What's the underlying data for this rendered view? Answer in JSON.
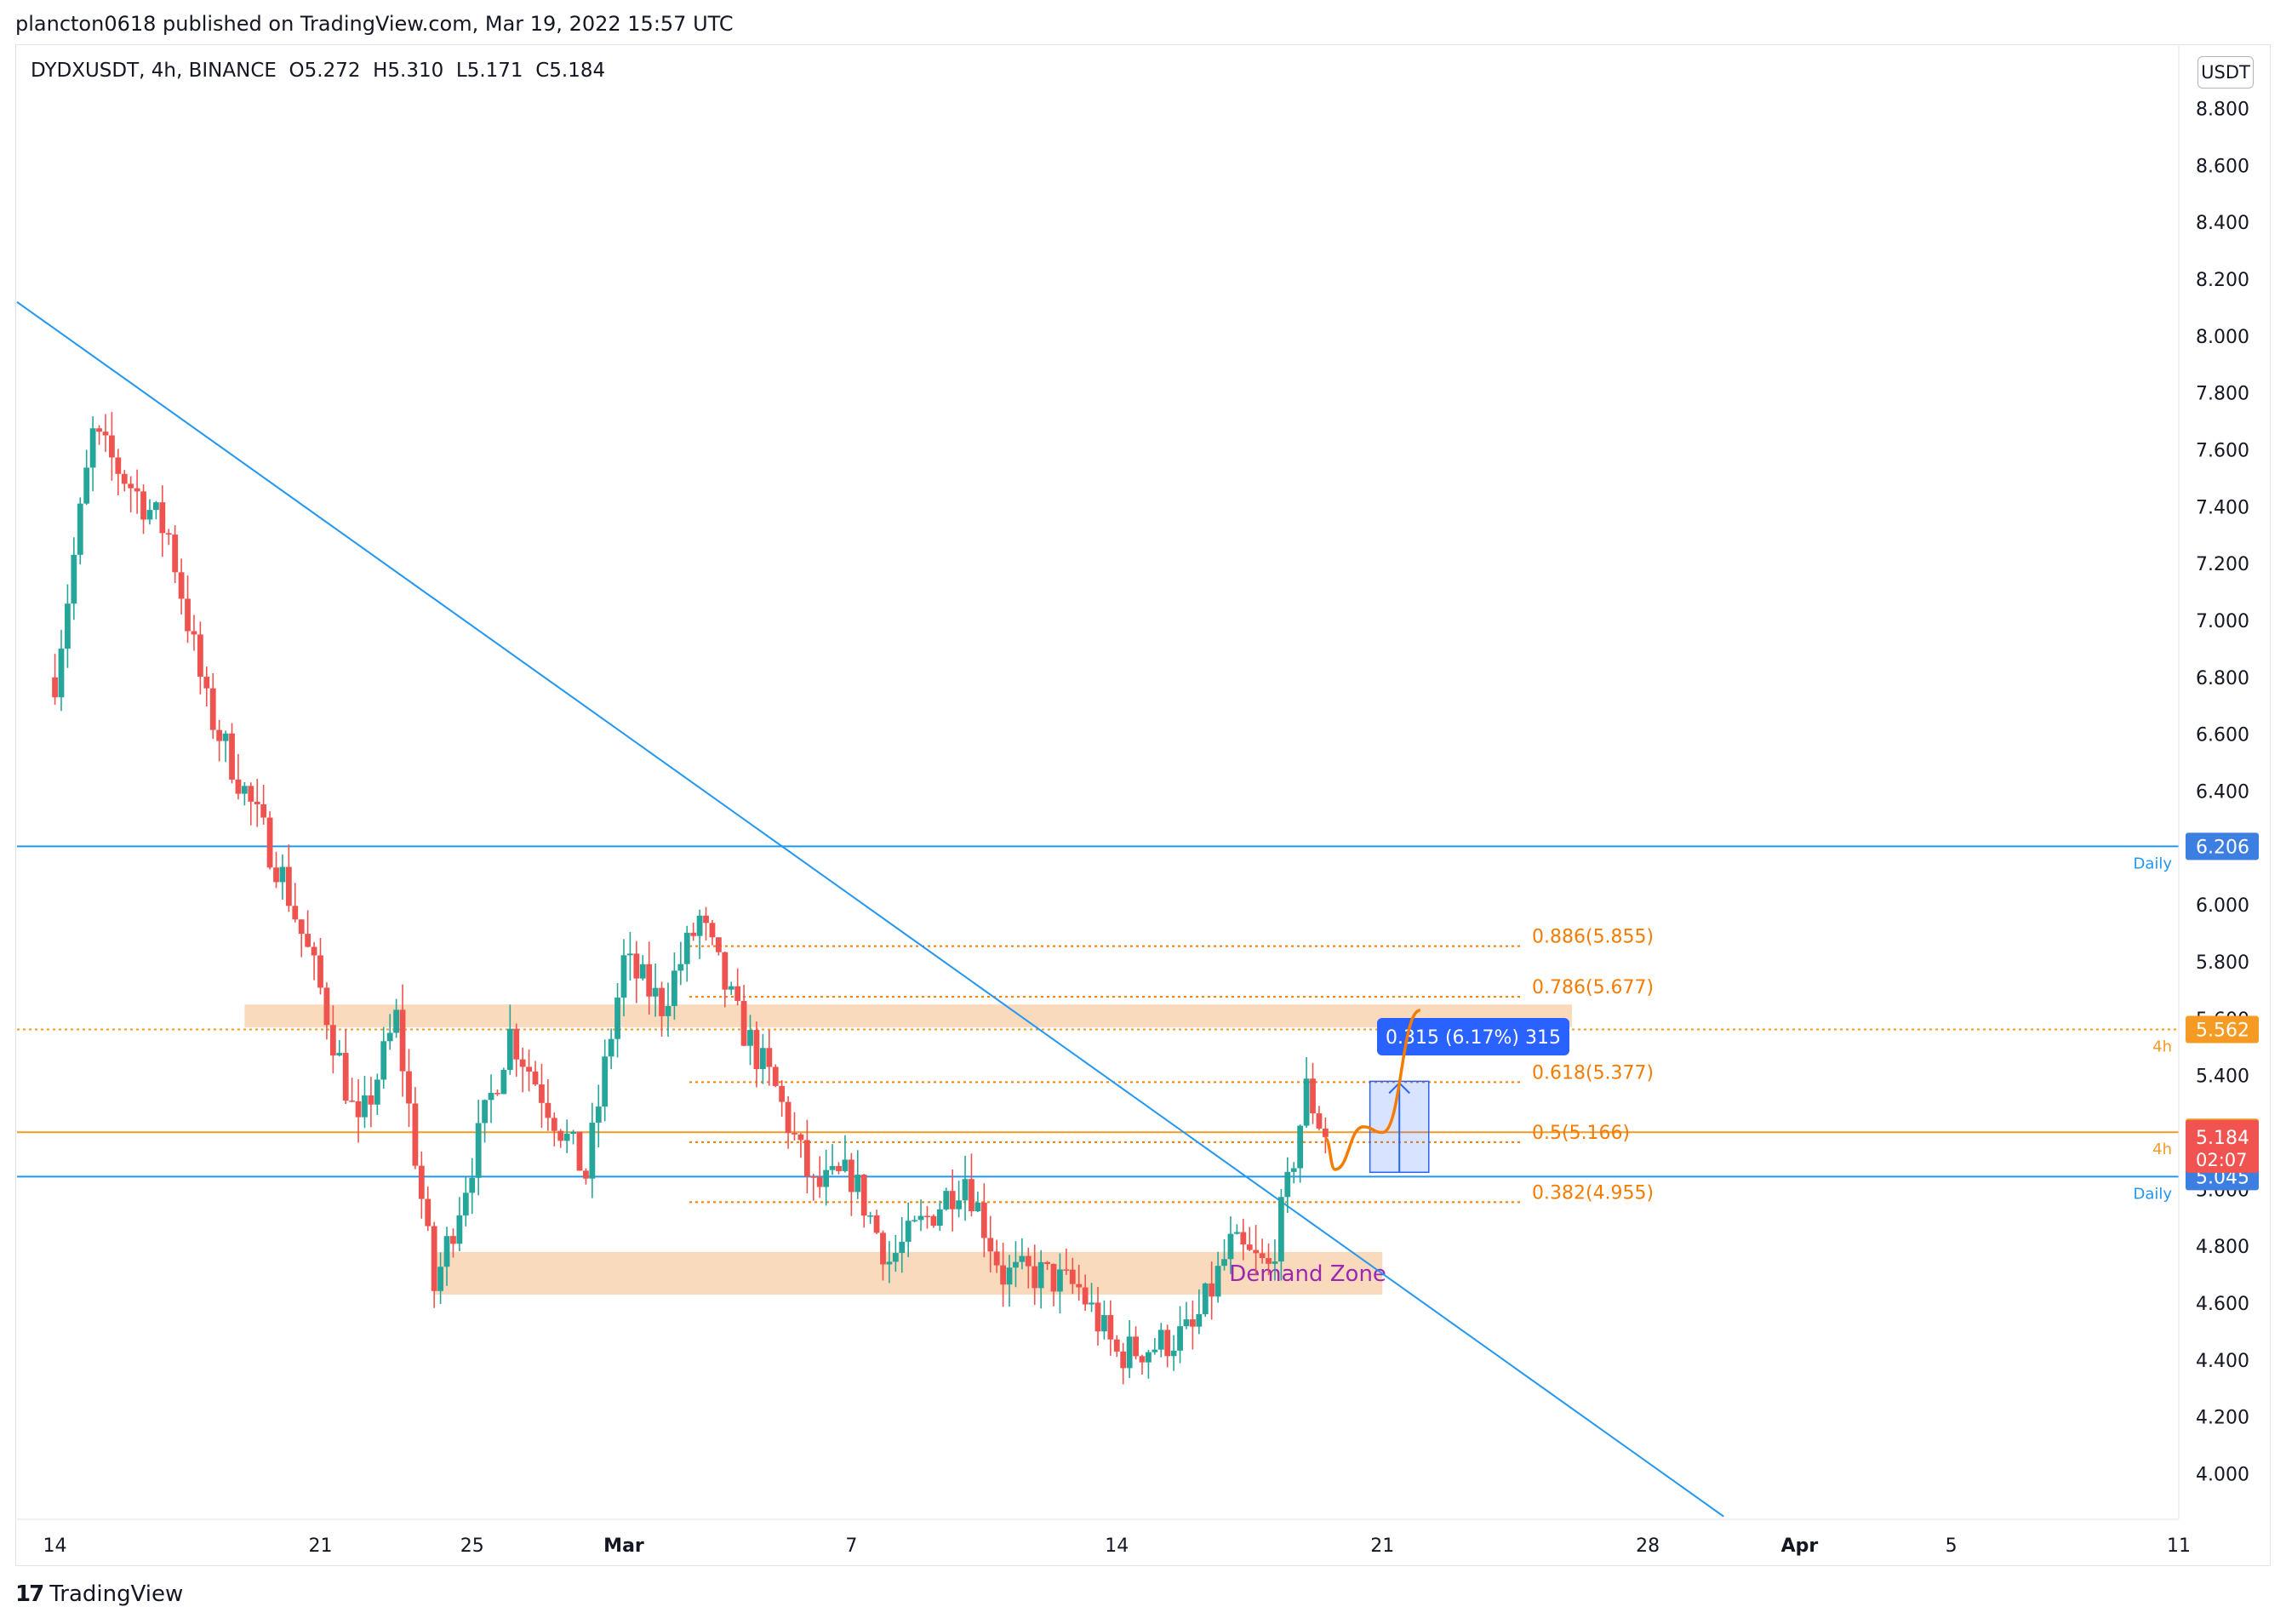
{
  "publisher_line": "plancton0618 published on TradingView.com, Mar 19, 2022 15:57 UTC",
  "legend": {
    "symbol": "DYDXUSDT, 4h, BINANCE",
    "open": "O5.272",
    "high": "H5.310",
    "low": "L5.171",
    "close": "C5.184"
  },
  "currency_label": "USDT",
  "brand": {
    "mark": "17",
    "name": "TradingView"
  },
  "colors": {
    "up": "#26a69a",
    "down": "#ef5350",
    "trend": "#2196f3",
    "fib": "#f57c00",
    "zone": "#f9d3b0",
    "blue_badge": "#2962ff",
    "orange_badge": "#f59a23",
    "red_badge": "#f05350"
  },
  "chart_data": {
    "type": "candlestick",
    "symbol": "DYDXUSDT",
    "interval": "4h",
    "exchange": "BINANCE",
    "ylim": [
      3.84,
      9.02
    ],
    "y_ticks": [
      8.8,
      8.6,
      8.4,
      8.2,
      8.0,
      7.8,
      7.6,
      7.4,
      7.2,
      7.0,
      6.8,
      6.6,
      6.4,
      6.2,
      6.0,
      5.8,
      5.6,
      5.4,
      5.2,
      5.0,
      4.8,
      4.6,
      4.4,
      4.2,
      4.0
    ],
    "y_tick_labels": [
      "8.800",
      "8.600",
      "8.400",
      "8.200",
      "8.000",
      "7.800",
      "7.600",
      "7.400",
      "7.200",
      "7.000",
      "6.800",
      "6.600",
      "6.400",
      "6.200",
      "6.000",
      "5.800",
      "5.600",
      "5.400",
      "5.200",
      "5.000",
      "4.800",
      "4.600",
      "4.400",
      "4.200",
      "4.000"
    ],
    "x_range": [
      "2022-02-13",
      "2022-04-11"
    ],
    "x_ticks": [
      {
        "date": "2022-02-14",
        "label": "14"
      },
      {
        "date": "2022-02-21",
        "label": "21"
      },
      {
        "date": "2022-02-25",
        "label": "25"
      },
      {
        "date": "2022-03-01",
        "label": "Mar"
      },
      {
        "date": "2022-03-07",
        "label": "7"
      },
      {
        "date": "2022-03-14",
        "label": "14"
      },
      {
        "date": "2022-03-21",
        "label": "21"
      },
      {
        "date": "2022-03-28",
        "label": "28"
      },
      {
        "date": "2022-04-01",
        "label": "Apr"
      },
      {
        "date": "2022-04-05",
        "label": "5"
      },
      {
        "date": "2022-04-11",
        "label": "11"
      }
    ],
    "key_points": [
      {
        "date": "2022-02-14",
        "price": 6.8
      },
      {
        "date": "2022-02-15",
        "price": 7.65
      },
      {
        "date": "2022-02-17",
        "price": 7.3
      },
      {
        "date": "2022-02-18",
        "price": 6.7
      },
      {
        "date": "2022-02-19",
        "price": 6.4
      },
      {
        "date": "2022-02-20",
        "price": 6.1
      },
      {
        "date": "2022-02-21",
        "price": 5.7
      },
      {
        "date": "2022-02-22",
        "price": 5.2
      },
      {
        "date": "2022-02-23",
        "price": 5.6
      },
      {
        "date": "2022-02-24",
        "price": 4.65
      },
      {
        "date": "2022-02-25",
        "price": 5.1
      },
      {
        "date": "2022-02-26",
        "price": 5.55
      },
      {
        "date": "2022-02-27",
        "price": 5.3
      },
      {
        "date": "2022-02-28",
        "price": 5.05
      },
      {
        "date": "2022-03-01",
        "price": 5.8
      },
      {
        "date": "2022-03-02",
        "price": 5.65
      },
      {
        "date": "2022-03-03",
        "price": 5.95
      },
      {
        "date": "2022-03-04",
        "price": 5.6
      },
      {
        "date": "2022-03-05",
        "price": 5.35
      },
      {
        "date": "2022-03-06",
        "price": 5.0
      },
      {
        "date": "2022-03-07",
        "price": 5.05
      },
      {
        "date": "2022-03-08",
        "price": 4.75
      },
      {
        "date": "2022-03-09",
        "price": 4.9
      },
      {
        "date": "2022-03-10",
        "price": 5.05
      },
      {
        "date": "2022-03-11",
        "price": 4.7
      },
      {
        "date": "2022-03-12",
        "price": 4.7
      },
      {
        "date": "2022-03-13",
        "price": 4.65
      },
      {
        "date": "2022-03-14",
        "price": 4.42
      },
      {
        "date": "2022-03-15",
        "price": 4.45
      },
      {
        "date": "2022-03-16",
        "price": 4.5
      },
      {
        "date": "2022-03-17",
        "price": 4.8
      },
      {
        "date": "2022-03-18",
        "price": 4.72
      },
      {
        "date": "2022-03-18T12:00",
        "price": 5.0
      },
      {
        "date": "2022-03-19",
        "price": 5.35
      },
      {
        "date": "2022-03-19T12:00",
        "price": 5.184
      }
    ],
    "trendline": {
      "start": {
        "date": "2022-02-13",
        "price": 8.12
      },
      "end": {
        "date": "2022-03-30",
        "price": 3.85
      }
    },
    "horizontal_levels": [
      {
        "label": "Daily",
        "price": 6.206,
        "price_label": "6.206",
        "color": "#2196f3"
      },
      {
        "label": "Daily",
        "price": 5.045,
        "price_label": "5.045",
        "color": "#2196f3"
      },
      {
        "label": "4h",
        "price": 5.201,
        "price_label": "5.201",
        "color": "#f59a23"
      },
      {
        "label": "4h",
        "price": 5.562,
        "price_label": "5.562",
        "color": "#f59a23"
      }
    ],
    "current_price": {
      "price_label": "5.184",
      "countdown": "02:07"
    },
    "fib_levels": [
      {
        "ratio_label": "0.886(5.855)",
        "price": 5.855
      },
      {
        "ratio_label": "0.786(5.677)",
        "price": 5.677
      },
      {
        "ratio_label": "0.618(5.377)",
        "price": 5.377
      },
      {
        "ratio_label": "0.5(5.166)",
        "price": 5.166
      },
      {
        "ratio_label": "0.382(4.955)",
        "price": 4.955
      }
    ],
    "zones": [
      {
        "from": "2022-02-19",
        "to": "2022-03-26",
        "low": 5.57,
        "high": 5.65
      },
      {
        "from": "2022-02-24",
        "to": "2022-03-21",
        "low": 4.63,
        "high": 4.78,
        "label": "Demand Zone"
      }
    ],
    "measure": {
      "label": "0.315 (6.17%) 315",
      "from_price": 5.06,
      "to_price": 5.38,
      "date_from": "2022-03-20",
      "date_to": "2022-03-22"
    },
    "projection": [
      {
        "date": "2022-03-19T12:00",
        "price": 5.18
      },
      {
        "date": "2022-03-19T18:00",
        "price": 5.07
      },
      {
        "date": "2022-03-20T12:00",
        "price": 5.22
      },
      {
        "date": "2022-03-21",
        "price": 5.2
      },
      {
        "date": "2022-03-22",
        "price": 5.63
      }
    ]
  }
}
